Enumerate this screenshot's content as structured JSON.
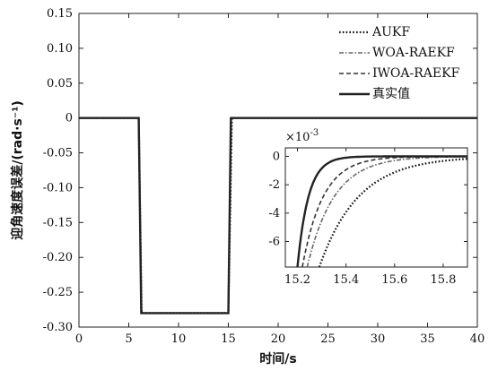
{
  "chart_data": [
    {
      "type": "line",
      "xlabel": "时间/s",
      "ylabel": "迎角速度误差/(rad·s⁻¹)",
      "xlim": [
        0,
        40
      ],
      "ylim": [
        -0.3,
        0.15
      ],
      "x_ticks": [
        "0",
        "5",
        "10",
        "15",
        "20",
        "25",
        "30",
        "35",
        "40"
      ],
      "y_ticks": [
        "0.15",
        "0.10",
        "0.05",
        "0",
        "-0.05",
        "-0.10",
        "-0.15",
        "-0.20",
        "-0.25",
        "-0.30"
      ],
      "legend_position": "top-right",
      "series": [
        {
          "name": "AUKF",
          "style": "dotted",
          "x": [
            0,
            6.0,
            6.3,
            15.0,
            15.35,
            40
          ],
          "y": [
            0,
            0,
            -0.28,
            -0.28,
            0,
            0
          ]
        },
        {
          "name": "WOA-RAEKF",
          "style": "dash-dot",
          "x": [
            0,
            6.0,
            6.3,
            15.0,
            15.3,
            40
          ],
          "y": [
            0,
            0,
            -0.28,
            -0.28,
            0,
            0
          ]
        },
        {
          "name": "IWOA-RAEKF",
          "style": "dashed",
          "x": [
            0,
            6.0,
            6.3,
            15.0,
            15.3,
            40
          ],
          "y": [
            0,
            0,
            -0.28,
            -0.28,
            0,
            0
          ]
        },
        {
          "name": "真实值",
          "style": "solid",
          "x": [
            0,
            6.0,
            6.25,
            15.0,
            15.25,
            40
          ],
          "y": [
            0,
            0,
            -0.28,
            -0.28,
            0,
            0
          ]
        }
      ]
    },
    {
      "type": "line",
      "role": "inset",
      "multiplier": "×10",
      "multiplier_exp": "-3",
      "xlim": [
        15.15,
        15.9
      ],
      "ylim": [
        -7.8,
        0.6
      ],
      "x_ticks": [
        "15.2",
        "15.4",
        "15.6",
        "15.8"
      ],
      "y_ticks": [
        "0",
        "-2",
        "-4",
        "-6"
      ],
      "series": [
        {
          "name": "AUKF",
          "style": "dotted",
          "tau": 0.16,
          "start": 15.29
        },
        {
          "name": "WOA-RAEKF",
          "style": "dash-dot",
          "tau": 0.11,
          "start": 15.24
        },
        {
          "name": "IWOA-RAEKF",
          "style": "dashed",
          "tau": 0.085,
          "start": 15.22
        },
        {
          "name": "真实值",
          "style": "solid",
          "tau": 0.045,
          "start": 15.2
        }
      ]
    }
  ]
}
